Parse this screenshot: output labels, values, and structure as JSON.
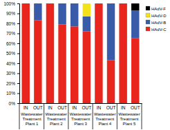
{
  "chart_data": {
    "type": "bar",
    "stacked": true,
    "legend": "right",
    "categories": [
      "IN",
      "OUT",
      "IN",
      "OUT",
      "IN",
      "OUT",
      "IN",
      "OUT",
      "IN",
      "OUT"
    ],
    "x_groups": [
      "Wastewater Treatment Plant 1",
      "Wastewater Treatment Plant 2",
      "Wastewater Treatment Plant 3",
      "Wastewater Treatment Plant 4",
      "Wastewater Treatment Plant 5"
    ],
    "series": [
      {
        "name": "HAdV-C",
        "color": "#e8261e",
        "values": [
          100,
          83,
          100,
          79,
          77,
          72,
          100,
          43,
          100,
          65
        ]
      },
      {
        "name": "HAdV-B",
        "color": "#3a5ca8",
        "values": [
          0,
          17,
          0,
          21,
          23,
          15,
          0,
          57,
          0,
          28
        ]
      },
      {
        "name": "HAdV-D",
        "color": "#f5e11a",
        "values": [
          0,
          0,
          0,
          0,
          0,
          13,
          0,
          0,
          0,
          0
        ]
      },
      {
        "name": "HAdV-F",
        "color": "#000000",
        "values": [
          0,
          0,
          0,
          0,
          0,
          0,
          0,
          0,
          0,
          7
        ]
      }
    ],
    "ylim": [
      0,
      100
    ],
    "yticks": [
      {
        "value": 0,
        "label": "0%"
      },
      {
        "value": 10,
        "label": "10%"
      },
      {
        "value": 20,
        "label": "20%"
      },
      {
        "value": 30,
        "label": "30%"
      },
      {
        "value": 40,
        "label": "40%"
      },
      {
        "value": 50,
        "label": "50%"
      },
      {
        "value": 60,
        "label": "60%"
      },
      {
        "value": 70,
        "label": "70%"
      },
      {
        "value": 80,
        "label": "80%"
      },
      {
        "value": 90,
        "label": "90%"
      },
      {
        "value": 100,
        "label": "100%"
      }
    ]
  }
}
